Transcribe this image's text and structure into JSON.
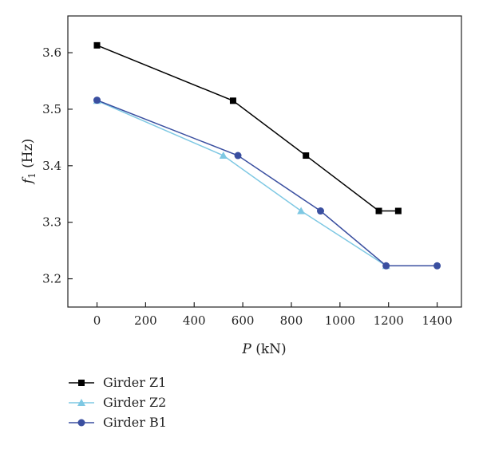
{
  "chart_data": {
    "type": "line",
    "title": "",
    "xlabel": {
      "italic": "P",
      "rest": " (kN)"
    },
    "ylabel": {
      "italic": "f",
      "sub": "1",
      "rest": " (Hz)"
    },
    "xlim": [
      -120,
      1500
    ],
    "ylim": [
      3.15,
      3.665
    ],
    "xticks": [
      0,
      200,
      400,
      600,
      800,
      1000,
      1200,
      1400
    ],
    "xtick_labels": [
      "0",
      "200",
      "400",
      "600",
      "800",
      "1000",
      "1200",
      "1400"
    ],
    "yticks": [
      3.2,
      3.3,
      3.4,
      3.5,
      3.6
    ],
    "ytick_labels": [
      "3.2",
      "3.3",
      "3.4",
      "3.5",
      "3.6"
    ],
    "grid": false,
    "legend_position": "bottom-left, below plot",
    "series": [
      {
        "name": "Girder Z1",
        "marker": "square",
        "color": "#000000",
        "x": [
          0,
          560,
          860,
          1160,
          1240
        ],
        "y": [
          3.613,
          3.515,
          3.418,
          3.32,
          3.32
        ]
      },
      {
        "name": "Girder Z2",
        "marker": "triangle",
        "color": "#7ec8e3",
        "x": [
          0,
          520,
          840,
          1190
        ],
        "y": [
          3.515,
          3.418,
          3.32,
          3.223
        ]
      },
      {
        "name": "Girder B1",
        "marker": "circle",
        "color": "#3a4fa0",
        "x": [
          0,
          580,
          920,
          1190,
          1400
        ],
        "y": [
          3.516,
          3.418,
          3.32,
          3.223,
          3.223
        ]
      }
    ]
  }
}
